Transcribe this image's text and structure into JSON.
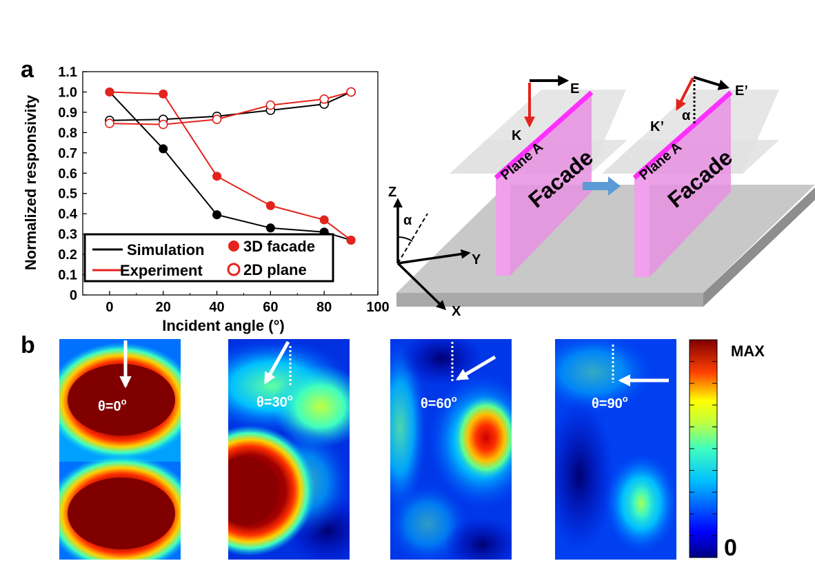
{
  "panels": {
    "a_label": "a",
    "b_label": "b"
  },
  "chart_data": {
    "type": "line",
    "xlabel": "Incident angle (°)",
    "ylabel": "Normalized responsivity",
    "xlim": [
      -10,
      100
    ],
    "ylim": [
      0,
      1.1
    ],
    "x_ticks": [
      0,
      20,
      40,
      60,
      80,
      100
    ],
    "y_ticks": [
      0,
      0.1,
      0.2,
      0.3,
      0.4,
      0.5,
      0.6,
      0.7,
      0.8,
      0.9,
      1.0,
      1.1
    ],
    "grid": false,
    "legend_position": "bottom-left",
    "legend": {
      "line_sim": "Simulation",
      "line_exp": "Experiment",
      "marker_3d": "3D facade",
      "marker_2d": "2D plane"
    },
    "series": [
      {
        "line": "simulation",
        "marker": "3d",
        "color": "#000000",
        "filled": true,
        "x": [
          0,
          20,
          40,
          60,
          80,
          90
        ],
        "y": [
          1.0,
          0.72,
          0.395,
          0.33,
          0.31,
          0.27
        ]
      },
      {
        "line": "experiment",
        "marker": "3d",
        "color": "#e3231c",
        "filled": true,
        "x": [
          0,
          20,
          40,
          60,
          80,
          90
        ],
        "y": [
          1.0,
          0.99,
          0.585,
          0.44,
          0.37,
          0.27
        ]
      },
      {
        "line": "simulation",
        "marker": "2d",
        "color": "#000000",
        "filled": false,
        "x": [
          0,
          20,
          40,
          60,
          80,
          90
        ],
        "y": [
          0.86,
          0.865,
          0.88,
          0.91,
          0.94,
          1.0
        ]
      },
      {
        "line": "experiment",
        "marker": "2d",
        "color": "#e3231c",
        "filled": false,
        "x": [
          0,
          20,
          40,
          60,
          80,
          90
        ],
        "y": [
          0.845,
          0.84,
          0.865,
          0.935,
          0.965,
          1.0
        ]
      }
    ]
  },
  "diagram": {
    "axis_z": "Z",
    "axis_y": "Y",
    "axis_x": "X",
    "alpha": "α",
    "left": {
      "e": "E",
      "k": "K",
      "plane": "Plane A",
      "facade": "Facade"
    },
    "right": {
      "e": "E’",
      "k": "K’",
      "alpha": "α",
      "plane": "Plane A",
      "facade": "Facade"
    }
  },
  "fields": {
    "theta": [
      "θ=0",
      "θ=30",
      "θ=60",
      "θ=90"
    ],
    "degree_mark": "o",
    "colorbar_max": "MAX",
    "colorbar_min": "0"
  },
  "colors": {
    "experiment": "#e3231c",
    "facade": "#ea8ae6",
    "plane_a": "#ff33ff",
    "arrow_blue": "#5b9bd5"
  }
}
